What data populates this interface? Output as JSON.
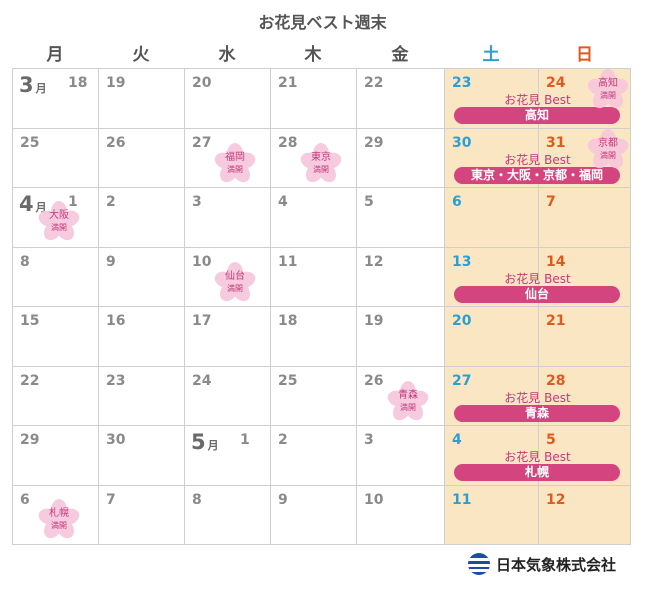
{
  "title": "お花見ベスト週末",
  "weekdays": [
    {
      "label": "月",
      "kind": "weekday"
    },
    {
      "label": "火",
      "kind": "weekday"
    },
    {
      "label": "水",
      "kind": "weekday"
    },
    {
      "label": "木",
      "kind": "weekday"
    },
    {
      "label": "金",
      "kind": "weekday"
    },
    {
      "label": "土",
      "kind": "sat"
    },
    {
      "label": "日",
      "kind": "sun"
    }
  ],
  "month_unit": "月",
  "weeks": [
    {
      "days": [
        "18",
        "19",
        "20",
        "21",
        "22",
        "23",
        "24"
      ],
      "month_start": {
        "col": 0,
        "month": "3"
      },
      "best": {
        "label": "お花見 Best",
        "cities": "高知"
      },
      "blossoms": [
        {
          "col": 6,
          "city": "高知",
          "status": "満開"
        }
      ]
    },
    {
      "days": [
        "25",
        "26",
        "27",
        "28",
        "29",
        "30",
        "31"
      ],
      "best": {
        "label": "お花見 Best",
        "cities": "東京・大阪・京都・福岡"
      },
      "blossoms": [
        {
          "col": 2,
          "city": "福岡",
          "status": "満開"
        },
        {
          "col": 3,
          "city": "東京",
          "status": "満開"
        },
        {
          "col": 6,
          "city": "京都",
          "status": "満開"
        }
      ]
    },
    {
      "days": [
        "1",
        "2",
        "3",
        "4",
        "5",
        "6",
        "7"
      ],
      "month_start": {
        "col": 0,
        "month": "4"
      },
      "blossoms": [
        {
          "col": 0,
          "city": "大阪",
          "status": "満開"
        }
      ]
    },
    {
      "days": [
        "8",
        "9",
        "10",
        "11",
        "12",
        "13",
        "14"
      ],
      "best": {
        "label": "お花見 Best",
        "cities": "仙台"
      },
      "blossoms": [
        {
          "col": 2,
          "city": "仙台",
          "status": "満開"
        }
      ]
    },
    {
      "days": [
        "15",
        "16",
        "17",
        "18",
        "19",
        "20",
        "21"
      ],
      "blossoms": []
    },
    {
      "days": [
        "22",
        "23",
        "24",
        "25",
        "26",
        "27",
        "28"
      ],
      "best": {
        "label": "お花見 Best",
        "cities": "青森"
      },
      "blossoms": [
        {
          "col": 4,
          "city": "青森",
          "status": "満開"
        }
      ]
    },
    {
      "days": [
        "29",
        "30",
        "1",
        "2",
        "3",
        "4",
        "5"
      ],
      "month_start": {
        "col": 2,
        "month": "5"
      },
      "best": {
        "label": "お花見 Best",
        "cities": "札幌"
      },
      "blossoms": []
    },
    {
      "days": [
        "6",
        "7",
        "8",
        "9",
        "10",
        "11",
        "12"
      ],
      "blossoms": [
        {
          "col": 0,
          "city": "札幌",
          "status": "満開"
        }
      ]
    }
  ],
  "colors": {
    "saturday": "#2a9fd6",
    "sunday": "#e05a1e",
    "weekend_bg": "#fbe6c4",
    "best_bar": "#d4457f",
    "sakura": "#f7c6dc"
  },
  "footer": {
    "company": "日本気象株式会社",
    "logo_icon": "globe-logo-icon"
  }
}
